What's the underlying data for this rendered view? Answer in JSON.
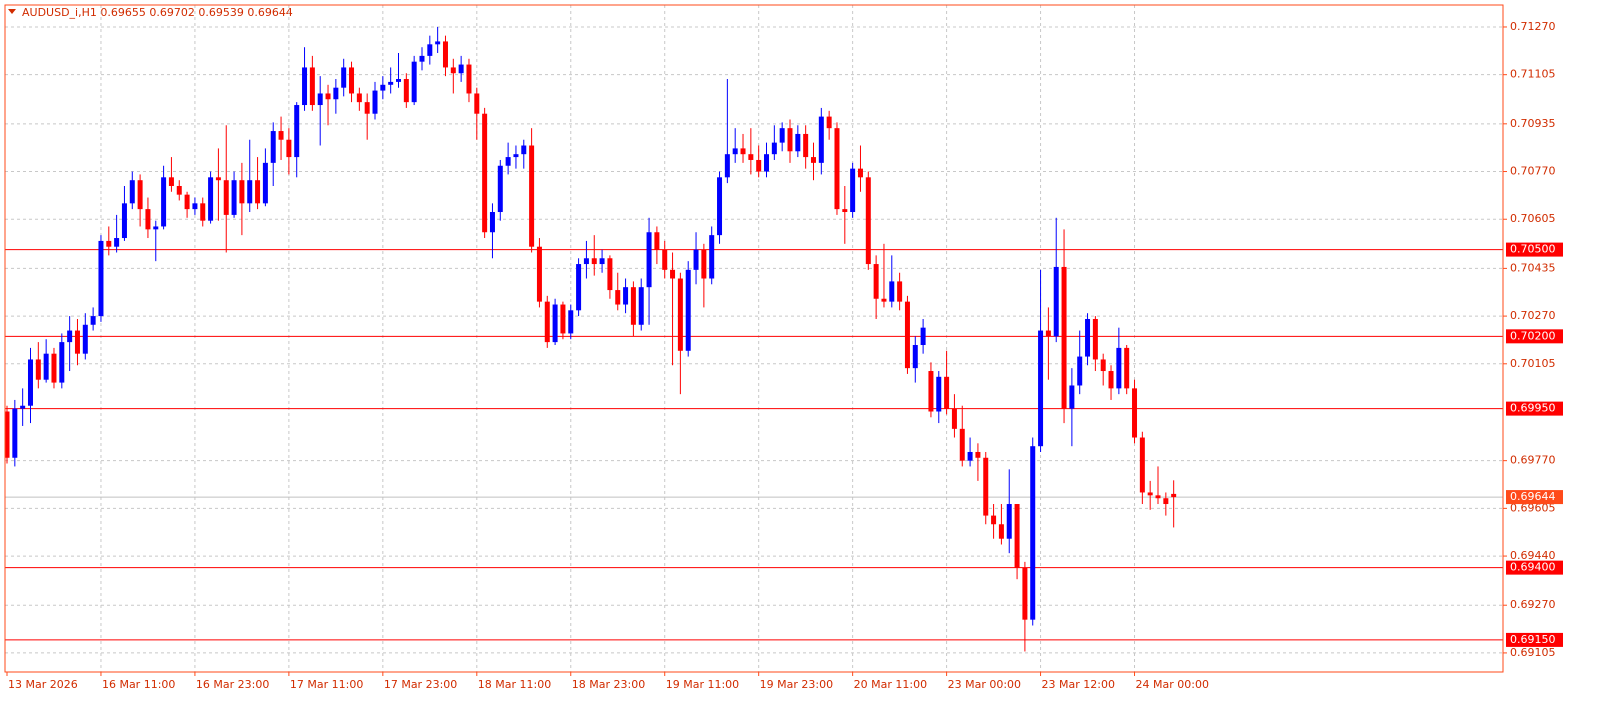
{
  "chart_data": {
    "type": "candlestick",
    "title": "AUDUSD_i,H1  0.69655 0.69702 0.69539 0.69644",
    "bull_color": "#0000ff",
    "bear_color": "#ff0000",
    "frame_color": "#ff4a1a",
    "grid": true,
    "ylim": [
      0.69039,
      0.71346
    ],
    "yticks": [
      {
        "value": 0.7127,
        "label": "0.71270"
      },
      0.71105,
      0.70935,
      {
        "value": 0.7077,
        "label": "0.70770"
      },
      0.70605,
      0.70435,
      {
        "value": 0.7027,
        "label": "0.70270"
      },
      0.70105,
      {
        "value": 0.6977,
        "label": "0.69770"
      },
      0.69605,
      {
        "value": 0.6944,
        "label": "0.69440"
      },
      {
        "value": 0.6927,
        "label": "0.69270"
      },
      0.69105
    ],
    "levels": [
      {
        "value": 0.705,
        "label": "0.70500"
      },
      {
        "value": 0.702,
        "label": "0.70200"
      },
      {
        "value": 0.6995,
        "label": "0.69950"
      },
      {
        "value": 0.694,
        "label": "0.69400"
      },
      {
        "value": 0.6915,
        "label": "0.69150"
      }
    ],
    "current_price": 0.69644,
    "categories": [
      "13 Mar 2026",
      null,
      null,
      null,
      null,
      null,
      null,
      null,
      null,
      null,
      null,
      null,
      "16 Mar 11:00",
      null,
      null,
      null,
      null,
      null,
      null,
      null,
      null,
      null,
      null,
      null,
      "16 Mar 23:00",
      null,
      null,
      null,
      null,
      null,
      null,
      null,
      null,
      null,
      null,
      null,
      "17 Mar 11:00",
      null,
      null,
      null,
      null,
      null,
      null,
      null,
      null,
      null,
      null,
      null,
      "17 Mar 23:00",
      null,
      null,
      null,
      null,
      null,
      null,
      null,
      null,
      null,
      null,
      null,
      "18 Mar 11:00",
      null,
      null,
      null,
      null,
      null,
      null,
      null,
      null,
      null,
      null,
      null,
      "18 Mar 23:00",
      null,
      null,
      null,
      null,
      null,
      null,
      null,
      null,
      null,
      null,
      null,
      "19 Mar 11:00",
      null,
      null,
      null,
      null,
      null,
      null,
      null,
      null,
      null,
      null,
      null,
      "19 Mar 23:00",
      null,
      null,
      null,
      null,
      null,
      null,
      null,
      null,
      null,
      null,
      null,
      "20 Mar 11:00",
      null,
      null,
      null,
      null,
      null,
      null,
      null,
      null,
      null,
      null,
      null,
      "23 Mar 00:00",
      null,
      null,
      null,
      null,
      null,
      null,
      null,
      null,
      null,
      null,
      null,
      "23 Mar 12:00",
      null,
      null,
      null,
      null,
      null,
      null,
      null,
      null,
      null,
      null,
      null,
      "24 Mar 00:00",
      null,
      null,
      null,
      null,
      null
    ],
    "open": [
      0.6994,
      0.6978,
      0.6995,
      0.6996,
      0.7012,
      0.7005,
      0.7014,
      0.7004,
      0.7018,
      0.7022,
      0.7014,
      0.7024,
      0.7027,
      0.7053,
      0.7051,
      0.7054,
      0.7066,
      0.7074,
      0.7064,
      0.7057,
      0.7058,
      0.7075,
      0.7072,
      0.7069,
      0.7064,
      0.7066,
      0.706,
      0.7075,
      0.7074,
      0.7062,
      0.7074,
      0.7066,
      0.7074,
      0.7066,
      0.708,
      0.7091,
      0.7088,
      0.7082,
      0.71,
      0.7113,
      0.71,
      0.7104,
      0.7102,
      0.7106,
      0.7113,
      0.7104,
      0.7101,
      0.7097,
      0.7105,
      0.7107,
      0.7108,
      0.7109,
      0.7101,
      0.7115,
      0.7117,
      0.7121,
      0.7122,
      0.7113,
      0.7111,
      0.7114,
      0.7104,
      0.7097,
      0.7056,
      0.7063,
      0.7079,
      0.7082,
      0.7083,
      0.7086,
      0.7051,
      0.7032,
      0.7018,
      0.7031,
      0.7021,
      0.7029,
      0.7045,
      0.7047,
      0.7045,
      0.7047,
      0.7036,
      0.7031,
      0.7037,
      0.7024,
      0.7037,
      0.7056,
      0.705,
      0.7043,
      0.704,
      0.7015,
      0.7043,
      0.705,
      0.704,
      0.7055,
      0.7075,
      0.7083,
      0.7085,
      0.7083,
      0.7081,
      0.7077,
      0.7083,
      0.7087,
      0.7092,
      0.7084,
      0.709,
      0.7082,
      0.708,
      0.7096,
      0.7092,
      0.7064,
      0.7063,
      0.7078,
      0.7075,
      0.7045,
      0.7033,
      0.7032,
      0.7039,
      0.7032,
      0.7009,
      0.7017,
      0.7008,
      0.6994,
      0.7006,
      0.6995,
      0.6988,
      0.6977,
      0.698,
      0.6978,
      0.6958,
      0.6955,
      0.695,
      0.6962,
      0.694,
      0.6922,
      0.6982,
      0.7022,
      0.702,
      0.7044,
      0.6995,
      0.7003,
      0.7013,
      0.7026,
      0.7012,
      0.7008,
      0.7002,
      0.7016,
      0.7002,
      0.6985,
      0.6966,
      0.6965,
      0.6964,
      0.69655
    ],
    "high": [
      0.6996,
      0.6998,
      0.7002,
      0.7016,
      0.7018,
      0.7019,
      0.7016,
      0.7021,
      0.7027,
      0.7026,
      0.7028,
      0.703,
      0.7055,
      0.7058,
      0.7062,
      0.7072,
      0.7077,
      0.7076,
      0.7068,
      0.706,
      0.7079,
      0.7082,
      0.7074,
      0.707,
      0.7068,
      0.7068,
      0.7077,
      0.7085,
      0.7093,
      0.7077,
      0.708,
      0.7088,
      0.7082,
      0.7085,
      0.7094,
      0.7096,
      0.7092,
      0.7101,
      0.712,
      0.7117,
      0.711,
      0.7107,
      0.7109,
      0.7116,
      0.7115,
      0.7106,
      0.7104,
      0.7108,
      0.711,
      0.7113,
      0.7118,
      0.7111,
      0.7117,
      0.712,
      0.7124,
      0.7127,
      0.7124,
      0.7116,
      0.7117,
      0.7116,
      0.7106,
      0.7099,
      0.7066,
      0.7081,
      0.7087,
      0.7086,
      0.7088,
      0.7092,
      0.7054,
      0.7034,
      0.7033,
      0.7032,
      0.7031,
      0.7047,
      0.7053,
      0.7055,
      0.705,
      0.7048,
      0.7042,
      0.704,
      0.7039,
      0.704,
      0.7061,
      0.7058,
      0.7053,
      0.7049,
      0.7042,
      0.7046,
      0.7056,
      0.7052,
      0.7058,
      0.7077,
      0.7109,
      0.7092,
      0.709,
      0.7092,
      0.7086,
      0.7087,
      0.7093,
      0.7094,
      0.7095,
      0.7093,
      0.7093,
      0.7087,
      0.7099,
      0.7098,
      0.7094,
      0.7072,
      0.708,
      0.7086,
      0.7077,
      0.7048,
      0.7052,
      0.7048,
      0.7042,
      0.7034,
      0.702,
      0.7026,
      0.7011,
      0.7008,
      0.7015,
      0.7,
      0.6996,
      0.6985,
      0.6983,
      0.698,
      0.6962,
      0.6962,
      0.6974,
      0.6962,
      0.6942,
      0.6985,
      0.7043,
      0.703,
      0.7061,
      0.7057,
      0.7009,
      0.7022,
      0.7028,
      0.7027,
      0.7014,
      0.701,
      0.7023,
      0.7017,
      0.7005,
      0.6987,
      0.697,
      0.6975,
      0.6966,
      0.69702
    ],
    "low": [
      0.6976,
      0.6975,
      0.6989,
      0.699,
      0.7002,
      0.7004,
      0.7002,
      0.7002,
      0.7008,
      0.701,
      0.7012,
      0.7022,
      0.7025,
      0.7048,
      0.7049,
      0.7053,
      0.7064,
      0.7058,
      0.7054,
      0.7046,
      0.7057,
      0.707,
      0.7067,
      0.7061,
      0.7062,
      0.7058,
      0.7059,
      0.706,
      0.7049,
      0.7061,
      0.7055,
      0.7063,
      0.7064,
      0.7065,
      0.7072,
      0.7081,
      0.7076,
      0.7075,
      0.7098,
      0.7098,
      0.7086,
      0.7093,
      0.7097,
      0.7103,
      0.7101,
      0.7098,
      0.7088,
      0.7095,
      0.7102,
      0.7104,
      0.7106,
      0.7099,
      0.71,
      0.7112,
      0.7114,
      0.7118,
      0.711,
      0.7104,
      0.7108,
      0.7101,
      0.7088,
      0.7054,
      0.7047,
      0.706,
      0.7076,
      0.7078,
      0.7078,
      0.7049,
      0.703,
      0.7016,
      0.7017,
      0.7019,
      0.7019,
      0.7027,
      0.704,
      0.7041,
      0.7042,
      0.7033,
      0.7029,
      0.7028,
      0.702,
      0.7022,
      0.7024,
      0.7045,
      0.704,
      0.701,
      0.7,
      0.7013,
      0.7038,
      0.703,
      0.7038,
      0.7052,
      0.7073,
      0.708,
      0.708,
      0.7076,
      0.7075,
      0.7075,
      0.7081,
      0.7084,
      0.708,
      0.7082,
      0.7078,
      0.7074,
      0.7076,
      0.7088,
      0.7062,
      0.7052,
      0.7061,
      0.707,
      0.7043,
      0.7026,
      0.703,
      0.703,
      0.7029,
      0.7007,
      0.7004,
      0.7014,
      0.6992,
      0.699,
      0.6993,
      0.6985,
      0.6975,
      0.6975,
      0.697,
      0.6955,
      0.695,
      0.6948,
      0.6945,
      0.6936,
      0.6911,
      0.692,
      0.698,
      0.7005,
      0.7018,
      0.699,
      0.6982,
      0.7,
      0.701,
      0.7008,
      0.7003,
      0.6998,
      0.7,
      0.7,
      0.6983,
      0.6962,
      0.696,
      0.6962,
      0.6958,
      0.69539
    ],
    "close": [
      0.6978,
      0.6995,
      0.6996,
      0.7012,
      0.7005,
      0.7014,
      0.7004,
      0.7018,
      0.7022,
      0.7014,
      0.7024,
      0.7027,
      0.7053,
      0.7051,
      0.7054,
      0.7066,
      0.7074,
      0.7064,
      0.7057,
      0.7058,
      0.7075,
      0.7072,
      0.7069,
      0.7064,
      0.7066,
      0.706,
      0.7075,
      0.7074,
      0.7062,
      0.7074,
      0.7066,
      0.7074,
      0.7066,
      0.708,
      0.7091,
      0.7088,
      0.7082,
      0.71,
      0.7113,
      0.71,
      0.7104,
      0.7102,
      0.7106,
      0.7113,
      0.7104,
      0.7101,
      0.7097,
      0.7105,
      0.7107,
      0.7108,
      0.7109,
      0.7101,
      0.7115,
      0.7117,
      0.7121,
      0.7122,
      0.7113,
      0.7111,
      0.7114,
      0.7104,
      0.7097,
      0.7056,
      0.7063,
      0.7079,
      0.7082,
      0.7083,
      0.7086,
      0.7051,
      0.7032,
      0.7018,
      0.7031,
      0.7021,
      0.7029,
      0.7045,
      0.7047,
      0.7045,
      0.7047,
      0.7036,
      0.7031,
      0.7037,
      0.7024,
      0.7037,
      0.7056,
      0.705,
      0.7043,
      0.704,
      0.7015,
      0.7043,
      0.705,
      0.704,
      0.7055,
      0.7075,
      0.7083,
      0.7085,
      0.7083,
      0.7081,
      0.7077,
      0.7083,
      0.7087,
      0.7092,
      0.7084,
      0.709,
      0.7082,
      0.708,
      0.7096,
      0.7092,
      0.7064,
      0.7063,
      0.7078,
      0.7075,
      0.7045,
      0.7033,
      0.7032,
      0.7039,
      0.7032,
      0.7009,
      0.7017,
      0.7023,
      0.6994,
      0.7006,
      0.6995,
      0.6988,
      0.6977,
      0.698,
      0.6978,
      0.6958,
      0.6955,
      0.695,
      0.6962,
      0.694,
      0.6922,
      0.6982,
      0.7022,
      0.702,
      0.7044,
      0.6995,
      0.7003,
      0.7013,
      0.7026,
      0.7012,
      0.7008,
      0.7002,
      0.7016,
      0.7002,
      0.6985,
      0.6966,
      0.6965,
      0.6964,
      0.6962,
      0.69644
    ]
  }
}
